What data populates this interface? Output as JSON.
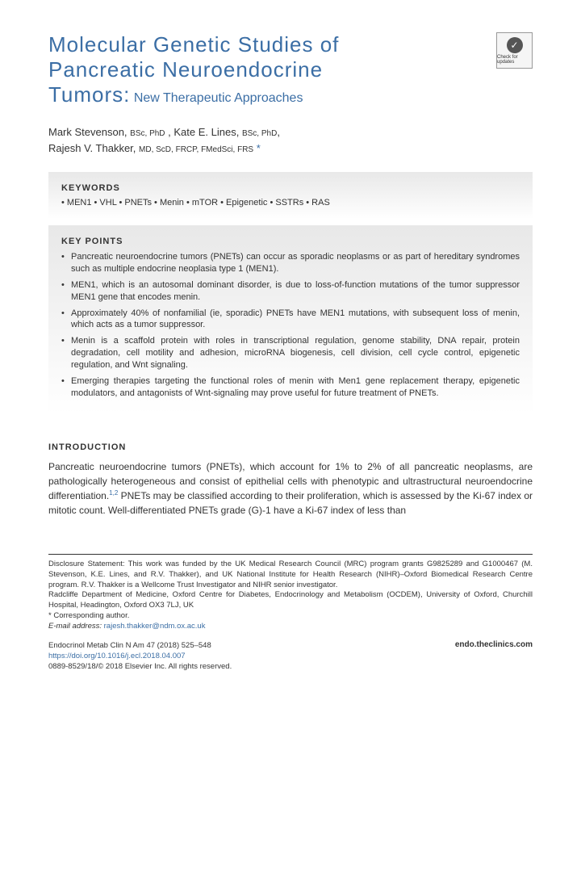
{
  "header": {
    "title_line1": "Molecular Genetic Studies of",
    "title_line2": "Pancreatic Neuroendocrine",
    "title_line3": "Tumors:",
    "subtitle": "New Therapeutic Approaches",
    "badge_label": "Check for updates"
  },
  "authors": {
    "line1_name1": "Mark Stevenson,",
    "line1_deg1": "BSc, PhD",
    "line1_name2": ", Kate E. Lines,",
    "line1_deg2": "BSc, PhD",
    "line2_name": "Rajesh V. Thakker,",
    "line2_deg": "MD, ScD, FRCP, FMedSci, FRS",
    "star": "*"
  },
  "keywords": {
    "heading": "KEYWORDS",
    "line": "• MEN1 • VHL • PNETs • Menin • mTOR • Epigenetic • SSTRs • RAS"
  },
  "keypoints": {
    "heading": "KEY POINTS",
    "items": [
      "Pancreatic neuroendocrine tumors (PNETs) can occur as sporadic neoplasms or as part of hereditary syndromes such as multiple endocrine neoplasia type 1 (MEN1).",
      "MEN1, which is an autosomal dominant disorder, is due to loss-of-function mutations of the tumor suppressor MEN1 gene that encodes menin.",
      "Approximately 40% of nonfamilial (ie, sporadic) PNETs have MEN1 mutations, with subsequent loss of menin, which acts as a tumor suppressor.",
      "Menin is a scaffold protein with roles in transcriptional regulation, genome stability, DNA repair, protein degradation, cell motility and adhesion, microRNA biogenesis, cell division, cell cycle control, epigenetic regulation, and Wnt signaling.",
      "Emerging therapies targeting the functional roles of menin with Men1 gene replacement therapy, epigenetic modulators, and antagonists of Wnt-signaling may prove useful for future treatment of PNETs."
    ]
  },
  "intro": {
    "heading": "INTRODUCTION",
    "para_part1": "Pancreatic neuroendocrine tumors (PNETs), which account for 1% to 2% of all pancreatic neoplasms, are pathologically heterogeneous and consist of epithelial cells with phenotypic and ultrastructural neuroendocrine differentiation.",
    "ref1": "1,2",
    "para_part2": " PNETs may be classified according to their proliferation, which is assessed by the Ki-67 index or mitotic count. Well-differentiated PNETs grade (G)-1 have a Ki-67 index of less than"
  },
  "footer": {
    "disclosure": "Disclosure Statement: This work was funded by the UK Medical Research Council (MRC) program grants G9825289 and G1000467 (M. Stevenson, K.E. Lines, and R.V. Thakker), and UK National Institute for Health Research (NIHR)–Oxford Biomedical Research Centre program. R.V. Thakker is a Wellcome Trust Investigator and NIHR senior investigator.",
    "affiliation": "Radcliffe Department of Medicine, Oxford Centre for Diabetes, Endocrinology and Metabolism (OCDEM), University of Oxford, Churchill Hospital, Headington, Oxford OX3 7LJ, UK",
    "corresponding": "* Corresponding author.",
    "email_label": "E-mail address:",
    "email": "rajesh.thakker@ndm.ox.ac.uk"
  },
  "bottom": {
    "journal": "Endocrinol Metab Clin N Am 47 (2018) 525–548",
    "doi": "https://doi.org/10.1016/j.ecl.2018.04.007",
    "copyright": "0889-8529/18/© 2018 Elsevier Inc. All rights reserved.",
    "site": "endo.theclinics.com"
  }
}
